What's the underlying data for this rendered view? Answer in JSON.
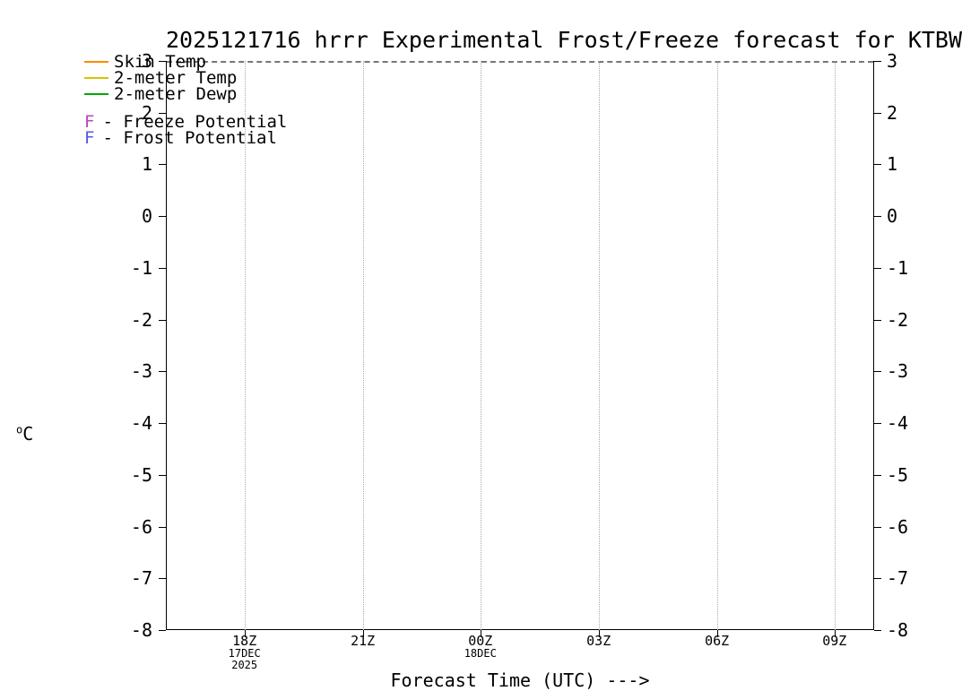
{
  "header": {
    "title": "2025121716 hrrr Experimental Frost/Freeze forecast for KTBW"
  },
  "legend": {
    "series": [
      {
        "label": "Skin Temp",
        "color": "#ff8800"
      },
      {
        "label": "2-meter Temp",
        "color": "#d9c300"
      },
      {
        "label": "2-meter Dewp",
        "color": "#00a800"
      }
    ],
    "potentials": [
      {
        "symbol": "F",
        "label": "- Freeze Potential",
        "color": "#bb44bb"
      },
      {
        "symbol": "F",
        "label": "- Frost Potential",
        "color": "#5555ee"
      }
    ]
  },
  "axes": {
    "ylabel_sup": "o",
    "ylabel_main": "C",
    "xlabel": "Forecast Time (UTC) --->",
    "yticks": [
      "3",
      "2",
      "1",
      "0",
      "-1",
      "-2",
      "-3",
      "-4",
      "-5",
      "-6",
      "-7",
      "-8"
    ],
    "xticks": [
      {
        "label": "18Z",
        "sub": [
          "17DEC",
          "2025"
        ]
      },
      {
        "label": "21Z",
        "sub": []
      },
      {
        "label": "00Z",
        "sub": [
          "18DEC"
        ]
      },
      {
        "label": "03Z",
        "sub": []
      },
      {
        "label": "06Z",
        "sub": []
      },
      {
        "label": "09Z",
        "sub": []
      }
    ]
  },
  "chart_data": {
    "type": "line",
    "title": "2025121716 hrrr Experimental Frost/Freeze forecast for KTBW",
    "xlabel": "Forecast Time (UTC) --->",
    "ylabel": "°C",
    "ylim": [
      -8,
      3
    ],
    "yticks": [
      3,
      2,
      1,
      0,
      -1,
      -2,
      -3,
      -4,
      -5,
      -6,
      -7,
      -8
    ],
    "xticks": [
      "18Z",
      "21Z",
      "00Z",
      "03Z",
      "06Z",
      "09Z"
    ],
    "xtick_dates": [
      "17DEC 2025",
      "",
      "18DEC",
      "",
      "",
      ""
    ],
    "grid": "vertical dotted gridlines at each x tick; dashed horizontal line at y=3 (top of frame)",
    "legend_position": "top-left",
    "series": [
      {
        "name": "Skin Temp",
        "color": "#ff8800",
        "values": []
      },
      {
        "name": "2-meter Temp",
        "color": "#d9c300",
        "values": []
      },
      {
        "name": "2-meter Dewp",
        "color": "#00a800",
        "values": []
      },
      {
        "name": "Freeze Potential",
        "symbol": "F",
        "color": "#bb44bb",
        "values": []
      },
      {
        "name": "Frost Potential",
        "symbol": "F",
        "color": "#5555ee",
        "values": []
      }
    ],
    "note": "Plot area is empty: no temperature curves or F potential markers are drawn within the visible -8..3 °C range."
  }
}
